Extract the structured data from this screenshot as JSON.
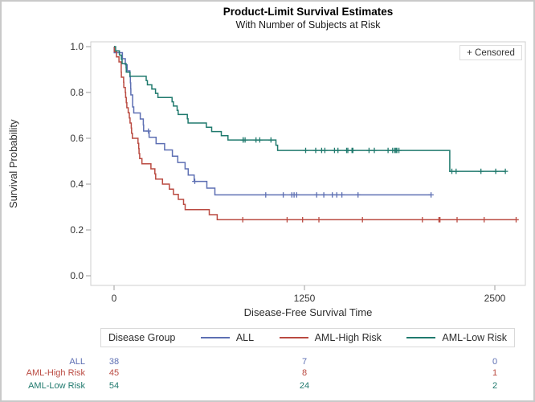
{
  "figure": {
    "title": "Product-Limit Survival Estimates",
    "subtitle": "With Number of Subjects at Risk",
    "censored_legend": "+ Censored",
    "legend_title": "Disease Group"
  },
  "chart_data": {
    "type": "line",
    "subtype": "kaplan-meier-step",
    "title": "Product-Limit Survival Estimates",
    "subtitle": "With Number of Subjects at Risk",
    "xlabel": "Disease-Free Survival Time",
    "ylabel": "Survival Probability",
    "xlim": [
      0,
      2740
    ],
    "ylim": [
      0.0,
      1.0
    ],
    "x_ticks": [
      0,
      1250,
      2500
    ],
    "y_tick_labels": [
      "0.0",
      "0.2",
      "0.4",
      "0.6",
      "0.8",
      "1.0"
    ],
    "grid": false,
    "legend_position": "bottom",
    "censored_marker": "+",
    "at_risk_times": [
      0,
      1250,
      2500
    ],
    "series": [
      {
        "name": "ALL",
        "color": "#5D6FB3",
        "at_risk": [
          38,
          7,
          0
        ],
        "steps": [
          [
            0,
            1.0
          ],
          [
            1,
            0.9737
          ],
          [
            55,
            0.9474
          ],
          [
            74,
            0.9211
          ],
          [
            86,
            0.8947
          ],
          [
            104,
            0.8684
          ],
          [
            107,
            0.8421
          ],
          [
            109,
            0.8158
          ],
          [
            110,
            0.7895
          ],
          [
            122,
            0.7368
          ],
          [
            129,
            0.7105
          ],
          [
            172,
            0.6842
          ],
          [
            192,
            0.6579
          ],
          [
            194,
            0.6316
          ],
          [
            230,
            0.6041
          ],
          [
            276,
            0.5767
          ],
          [
            332,
            0.5492
          ],
          [
            383,
            0.5217
          ],
          [
            418,
            0.4943
          ],
          [
            466,
            0.4668
          ],
          [
            487,
            0.4394
          ],
          [
            526,
            0.4119
          ],
          [
            609,
            0.3825
          ],
          [
            662,
            0.3531
          ]
        ],
        "censor_times": [
          226,
          530,
          996,
          1111,
          1167,
          1182,
          1199,
          1330,
          1377,
          1433,
          1462,
          1496,
          1602,
          2081
        ]
      },
      {
        "name": "AML-High Risk",
        "color": "#BA4A41",
        "at_risk": [
          45,
          8,
          1
        ],
        "steps": [
          [
            0,
            1.0
          ],
          [
            2,
            0.9778
          ],
          [
            16,
            0.9556
          ],
          [
            32,
            0.9333
          ],
          [
            47,
            0.8889
          ],
          [
            48,
            0.8667
          ],
          [
            63,
            0.8444
          ],
          [
            64,
            0.8222
          ],
          [
            74,
            0.8
          ],
          [
            76,
            0.7778
          ],
          [
            80,
            0.7556
          ],
          [
            84,
            0.7333
          ],
          [
            93,
            0.7111
          ],
          [
            100,
            0.6889
          ],
          [
            105,
            0.6667
          ],
          [
            113,
            0.6444
          ],
          [
            115,
            0.6222
          ],
          [
            120,
            0.6
          ],
          [
            157,
            0.5778
          ],
          [
            162,
            0.5556
          ],
          [
            164,
            0.5333
          ],
          [
            168,
            0.5111
          ],
          [
            183,
            0.4889
          ],
          [
            242,
            0.4667
          ],
          [
            268,
            0.4444
          ],
          [
            273,
            0.4222
          ],
          [
            318,
            0.4
          ],
          [
            363,
            0.3778
          ],
          [
            390,
            0.3556
          ],
          [
            422,
            0.3333
          ],
          [
            456,
            0.3111
          ],
          [
            467,
            0.2889
          ],
          [
            625,
            0.2667
          ],
          [
            677,
            0.2444
          ]
        ],
        "censor_times": [
          845,
          1136,
          1238,
          1345,
          1631,
          2024,
          2133,
          2140,
          2252,
          2430,
          2640
        ]
      },
      {
        "name": "AML-Low Risk",
        "color": "#207A6E",
        "at_risk": [
          54,
          24,
          2
        ],
        "steps": [
          [
            0,
            1.0
          ],
          [
            10,
            0.9815
          ],
          [
            35,
            0.963
          ],
          [
            48,
            0.9444
          ],
          [
            53,
            0.9259
          ],
          [
            79,
            0.9074
          ],
          [
            80,
            0.8889
          ],
          [
            105,
            0.8704
          ],
          [
            211,
            0.8519
          ],
          [
            219,
            0.8333
          ],
          [
            248,
            0.8148
          ],
          [
            272,
            0.7963
          ],
          [
            288,
            0.7778
          ],
          [
            381,
            0.7593
          ],
          [
            390,
            0.7407
          ],
          [
            414,
            0.7222
          ],
          [
            421,
            0.7037
          ],
          [
            481,
            0.6852
          ],
          [
            486,
            0.6667
          ],
          [
            606,
            0.6481
          ],
          [
            641,
            0.6296
          ],
          [
            704,
            0.6111
          ],
          [
            748,
            0.5926
          ],
          [
            1063,
            0.5698
          ],
          [
            1074,
            0.547
          ],
          [
            2204,
            0.4558
          ]
        ],
        "censor_times": [
          847,
          848,
          860,
          932,
          957,
          1030,
          1258,
          1324,
          1363,
          1384,
          1447,
          1470,
          1527,
          1535,
          1562,
          1568,
          1674,
          1709,
          1799,
          1829,
          1843,
          1850,
          1857,
          1870,
          2218,
          2246,
          2409,
          2506,
          2569
        ]
      }
    ]
  }
}
